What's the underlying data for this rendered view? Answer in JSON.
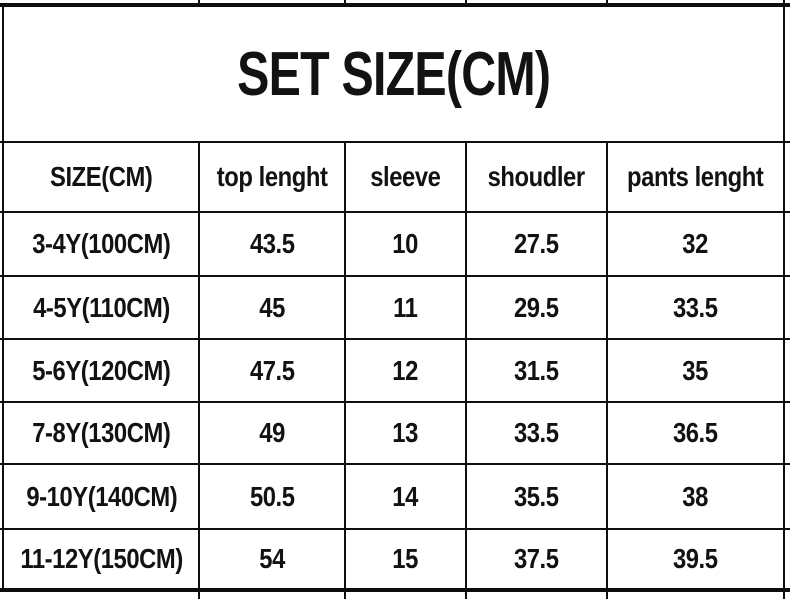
{
  "title": "SET SIZE(CM)",
  "colors": {
    "background": "#ffffff",
    "grid_line": "#0e0e0e",
    "text": "#121212"
  },
  "table": {
    "headers": [
      "SIZE(CM)",
      "top lenght",
      "sleeve",
      "shoudler",
      "pants lenght"
    ],
    "rows": [
      {
        "cells": [
          "3-4Y(100CM)",
          "43.5",
          "10",
          "27.5",
          "32"
        ]
      },
      {
        "cells": [
          "4-5Y(110CM)",
          "45",
          "11",
          "29.5",
          "33.5"
        ]
      },
      {
        "cells": [
          "5-6Y(120CM)",
          "47.5",
          "12",
          "31.5",
          "35"
        ]
      },
      {
        "cells": [
          "7-8Y(130CM)",
          "49",
          "13",
          "33.5",
          "36.5"
        ]
      },
      {
        "cells": [
          "9-10Y(140CM)",
          "50.5",
          "14",
          "35.5",
          "38"
        ]
      },
      {
        "cells": [
          "11-12Y(150CM)",
          "54",
          "15",
          "37.5",
          "39.5"
        ]
      }
    ]
  },
  "chart_data": {
    "type": "table",
    "title": "SET SIZE(CM)",
    "columns": [
      "SIZE(CM)",
      "top lenght",
      "sleeve",
      "shoudler",
      "pants lenght"
    ],
    "rows": [
      [
        "3-4Y(100CM)",
        43.5,
        10,
        27.5,
        32
      ],
      [
        "4-5Y(110CM)",
        45,
        11,
        29.5,
        33.5
      ],
      [
        "5-6Y(120CM)",
        47.5,
        12,
        31.5,
        35
      ],
      [
        "7-8Y(130CM)",
        49,
        13,
        33.5,
        36.5
      ],
      [
        "9-10Y(140CM)",
        50.5,
        14,
        35.5,
        38
      ],
      [
        "11-12Y(150CM)",
        54,
        15,
        37.5,
        39.5
      ]
    ],
    "units": "cm",
    "layout": {
      "grid": true,
      "header_row": true,
      "title_row_spans_all_columns": true
    }
  }
}
